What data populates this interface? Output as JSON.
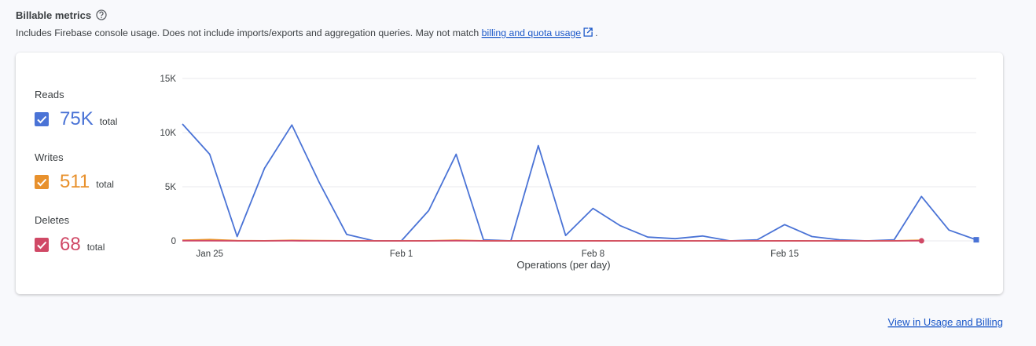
{
  "header": {
    "title": "Billable metrics",
    "description": "Includes Firebase console usage. Does not include imports/exports and aggregation queries. May not match ",
    "link": "billing and quota usage",
    "end": "."
  },
  "chart_data": {
    "type": "line",
    "x_label": "Operations (per day)",
    "categories": [
      null,
      "Jan 25",
      null,
      null,
      null,
      null,
      null,
      null,
      "Feb 1",
      null,
      null,
      null,
      null,
      null,
      null,
      "Feb 8",
      null,
      null,
      null,
      null,
      null,
      null,
      "Feb 15",
      null,
      null,
      null,
      null,
      null,
      null,
      null
    ],
    "ylim": [
      0,
      15000
    ],
    "yticks": [
      0,
      {
        "value": 5000,
        "label": "5K"
      },
      {
        "value": 10000,
        "label": "10K"
      },
      {
        "value": 15000,
        "label": "15K"
      }
    ],
    "grid": true,
    "series": [
      {
        "name": "Reads",
        "color": "#4a73d6",
        "total": "75K",
        "total_unit": "total",
        "values": [
          10800,
          8000,
          400,
          6700,
          10700,
          5400,
          600,
          0,
          0,
          2800,
          8000,
          100,
          0,
          8800,
          500,
          3000,
          1400,
          350,
          200,
          450,
          0,
          100,
          1500,
          400,
          100,
          0,
          100,
          4100,
          1000,
          100
        ]
      },
      {
        "name": "Writes",
        "color": "#e8912d",
        "total": "511",
        "total_unit": "total",
        "values": [
          60,
          120,
          20,
          10,
          50,
          30,
          10,
          0,
          0,
          10,
          60,
          10,
          0,
          10,
          0,
          10,
          0,
          0,
          0,
          0,
          0,
          0,
          10,
          0,
          0,
          0,
          10,
          60,
          null,
          null
        ]
      },
      {
        "name": "Deletes",
        "color": "#d04966",
        "total": "68",
        "total_unit": "total",
        "values": [
          5,
          8,
          2,
          2,
          5,
          3,
          2,
          0,
          0,
          2,
          5,
          2,
          0,
          2,
          0,
          2,
          0,
          0,
          0,
          0,
          0,
          0,
          2,
          0,
          0,
          0,
          2,
          6,
          null,
          null
        ]
      }
    ]
  },
  "footer": {
    "link": "View in Usage and Billing"
  }
}
